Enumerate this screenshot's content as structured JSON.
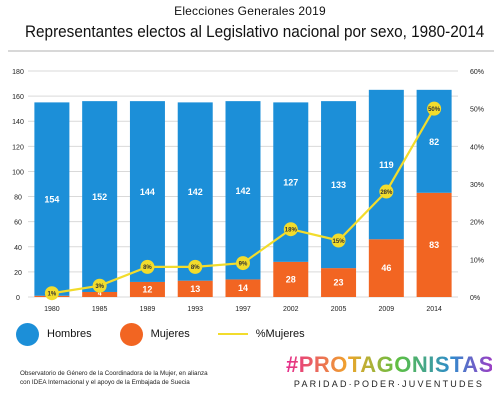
{
  "header": {
    "supertitle": "Elecciones Generales 2019",
    "title": "Representantes electos al Legislativo nacional por sexo, 1980-2014"
  },
  "chart_data": {
    "type": "bar",
    "stacked": true,
    "categories": [
      "1980",
      "1985",
      "1989",
      "1993",
      "1997",
      "2002",
      "2005",
      "2009",
      "2014"
    ],
    "series": [
      {
        "name": "Hombres",
        "values": [
          154,
          152,
          144,
          142,
          142,
          127,
          133,
          119,
          82
        ],
        "color": "#1c8fd8",
        "labels": [
          "154",
          "152",
          "144",
          "142",
          "142",
          "127",
          "133",
          "119",
          "82"
        ]
      },
      {
        "name": "Mujeres",
        "values": [
          1,
          4,
          12,
          13,
          14,
          28,
          23,
          46,
          83
        ],
        "color": "#f26522",
        "labels": [
          "1",
          "4",
          "12",
          "13",
          "14",
          "28",
          "23",
          "46",
          "83"
        ]
      }
    ],
    "line_series": {
      "name": "%Mujeres",
      "values": [
        1,
        3,
        8,
        8,
        9,
        18,
        15,
        28,
        50
      ],
      "labels": [
        "1%",
        "3%",
        "8%",
        "8%",
        "9%",
        "18%",
        "15%",
        "28%",
        "50%"
      ],
      "color": "#f2dc2c"
    },
    "y_left": {
      "lim": [
        0,
        180
      ],
      "ticks": [
        "0",
        "20",
        "40",
        "60",
        "80",
        "100",
        "120",
        "140",
        "160",
        "180"
      ]
    },
    "y_right": {
      "lim": [
        0,
        60
      ],
      "ticks": [
        "0%",
        "10%",
        "20%",
        "30%",
        "40%",
        "50%",
        "60%"
      ]
    },
    "grid": true,
    "legend_position": "bottom-left"
  },
  "legend": {
    "hombres": "Hombres",
    "mujeres": "Mujeres",
    "pct": "%Mujeres"
  },
  "footnote": {
    "line1": "Observatorio de Género de la Coordinadora de la Mujer, en alianza",
    "line2": "con IDEA Internacional y el apoyo de la Embajada de Suecia"
  },
  "brand": {
    "name": "#PROTAGONISTAS",
    "tagline": "PARIDAD·PODER·JUVENTUDES"
  }
}
